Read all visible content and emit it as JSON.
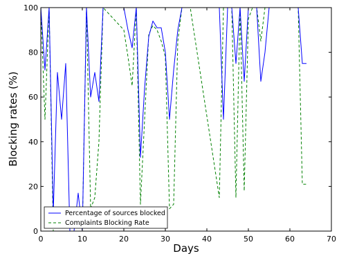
{
  "chart_data": {
    "type": "line",
    "xlabel": "Days",
    "ylabel": "Blocking rates (%)",
    "xlim": [
      0,
      70
    ],
    "ylim": [
      0,
      100
    ],
    "xticks": [
      0,
      10,
      20,
      30,
      40,
      50,
      60,
      70
    ],
    "yticks": [
      0,
      20,
      40,
      60,
      80,
      100
    ],
    "grid": false,
    "legend_position": "lower-left",
    "series": [
      {
        "name": "Percentage of sources blocked",
        "color": "#0000ff",
        "linestyle": "solid",
        "x": [
          0,
          1,
          2,
          3,
          4,
          5,
          6,
          7,
          8,
          9,
          10,
          11,
          12,
          13,
          14,
          15,
          20,
          21,
          22,
          23,
          24,
          25,
          26,
          27,
          28,
          29,
          30,
          31,
          32,
          33,
          34,
          35,
          36,
          43,
          44,
          45,
          46,
          47,
          48,
          49,
          50,
          51,
          52,
          53,
          54,
          55,
          62,
          63,
          64
        ],
        "y": [
          100,
          72,
          100,
          8,
          71,
          50,
          75,
          0,
          0,
          17,
          0,
          100,
          60,
          71,
          58,
          100,
          100,
          90,
          82,
          100,
          33,
          64,
          87,
          94,
          91,
          91,
          80,
          50,
          72,
          90,
          100,
          100,
          100,
          100,
          50,
          100,
          100,
          75,
          100,
          67,
          100,
          100,
          100,
          67,
          80,
          100,
          100,
          75,
          75
        ]
      },
      {
        "name": "Complaints Blocking Rate",
        "color": "#008000",
        "linestyle": "dashed",
        "x": [
          0,
          1,
          2,
          3,
          4,
          5,
          6,
          7,
          8,
          9,
          10,
          11,
          12,
          13,
          14,
          15,
          20,
          21,
          22,
          23,
          24,
          25,
          26,
          27,
          28,
          29,
          30,
          31,
          32,
          33,
          34,
          35,
          36,
          43,
          44,
          45,
          46,
          47,
          48,
          49,
          50,
          51,
          52,
          53,
          54,
          55,
          62,
          63,
          64
        ],
        "y": [
          100,
          50,
          100,
          0,
          0,
          0,
          0,
          0,
          0,
          0,
          0,
          100,
          10,
          15,
          40,
          100,
          90,
          78,
          65,
          100,
          12,
          50,
          88,
          92,
          90,
          85,
          78,
          10,
          12,
          85,
          100,
          100,
          100,
          15,
          100,
          100,
          100,
          15,
          100,
          18,
          95,
          100,
          100,
          85,
          100,
          100,
          100,
          21,
          21
        ]
      }
    ]
  }
}
